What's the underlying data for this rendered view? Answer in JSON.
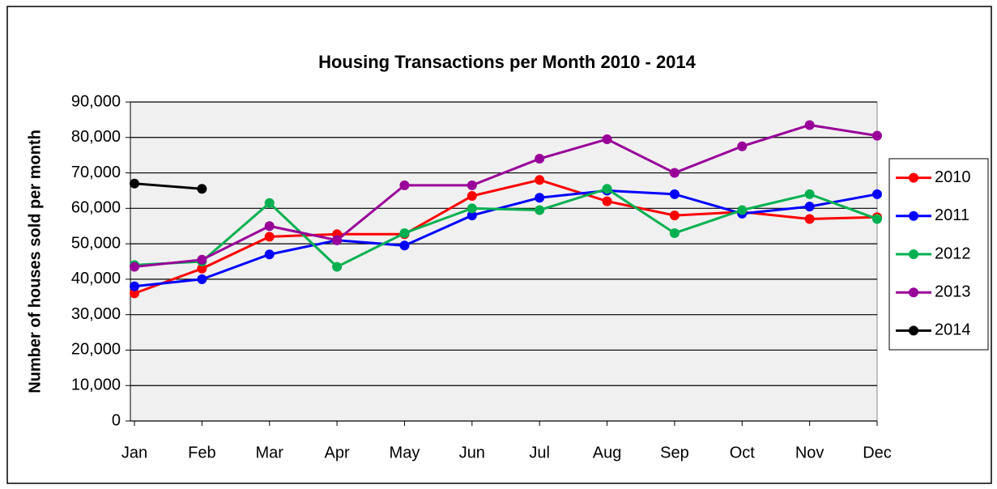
{
  "chart_data": {
    "type": "line",
    "title": "Housing Transactions per Month 2010 - 2014",
    "y_label": "Number of houses sold per month",
    "categories": [
      "Jan",
      "Feb",
      "Mar",
      "Apr",
      "May",
      "Jun",
      "Jul",
      "Aug",
      "Sep",
      "Oct",
      "Nov",
      "Dec"
    ],
    "series": [
      {
        "name": "2010",
        "color": "#ff0000",
        "values": [
          36000,
          43000,
          52000,
          52700,
          52700,
          63500,
          68000,
          62000,
          58000,
          59000,
          57000,
          57500
        ]
      },
      {
        "name": "2011",
        "color": "#0000ff",
        "values": [
          38000,
          40000,
          47000,
          51000,
          49500,
          58000,
          63000,
          65000,
          64000,
          58500,
          60500,
          64000
        ]
      },
      {
        "name": "2012",
        "color": "#00b050",
        "values": [
          44000,
          45000,
          61500,
          43500,
          53000,
          60000,
          59500,
          65500,
          53000,
          59500,
          64000,
          57000
        ]
      },
      {
        "name": "2013",
        "color": "#990099",
        "values": [
          43500,
          45500,
          55000,
          51000,
          66500,
          66500,
          74000,
          79500,
          70000,
          77500,
          83500,
          80500
        ]
      },
      {
        "name": "2014",
        "color": "#000000",
        "values": [
          67000,
          65500,
          null,
          null,
          null,
          null,
          null,
          null,
          null,
          null,
          null,
          null
        ]
      }
    ],
    "ylim": [
      0,
      90000
    ],
    "yticks": [
      0,
      {
        "value": 10000,
        "label": "10,000"
      },
      {
        "value": 20000,
        "label": "20,000"
      },
      {
        "value": 30000,
        "label": "30,000"
      },
      {
        "value": 40000,
        "label": "40,000"
      },
      {
        "value": 50000,
        "label": "50,000"
      },
      {
        "value": 60000,
        "label": "60,000"
      },
      {
        "value": 70000,
        "label": "70,000"
      },
      {
        "value": 80000,
        "label": "80,000"
      },
      {
        "value": 90000,
        "label": "90,000"
      }
    ],
    "grid": true,
    "legend": "right"
  }
}
